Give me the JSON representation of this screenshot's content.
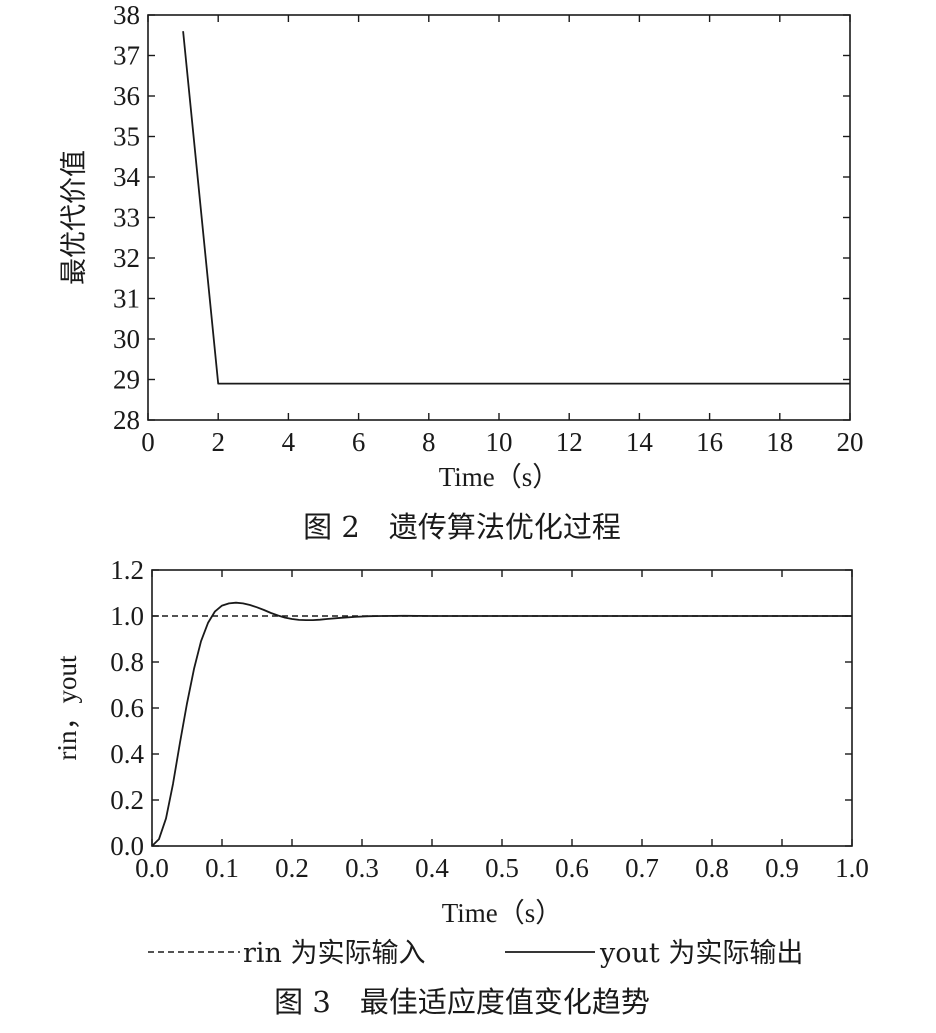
{
  "chart_data": [
    {
      "type": "line",
      "caption": "图 2　遗传算法优化过程",
      "xlabel": "Time（s）",
      "ylabel": "最优代价值",
      "xlim": [
        0,
        20
      ],
      "ylim": [
        28,
        38
      ],
      "xticks": [
        0,
        2,
        4,
        6,
        8,
        10,
        12,
        14,
        16,
        18,
        20
      ],
      "yticks": [
        28,
        29,
        30,
        31,
        32,
        33,
        34,
        35,
        36,
        37,
        38
      ],
      "series": [
        {
          "x": [
            1,
            2,
            20
          ],
          "y": [
            37.6,
            28.9,
            28.9
          ]
        }
      ]
    },
    {
      "type": "line",
      "caption": "图 3　最佳适应度值变化趋势",
      "xlabel": "Time（s）",
      "ylabel": "rin，yout",
      "xlim": [
        0.0,
        1.0
      ],
      "ylim": [
        0.0,
        1.2
      ],
      "xticks": [
        "0.0",
        "0.1",
        "0.2",
        "0.3",
        "0.4",
        "0.5",
        "0.6",
        "0.7",
        "0.8",
        "0.9",
        "1.0"
      ],
      "yticks": [
        "0.0",
        "0.2",
        "0.4",
        "0.6",
        "0.8",
        "1.0",
        "1.2"
      ],
      "series": [
        {
          "name": "rin 为实际输入",
          "style": "dashed",
          "x": [
            0.0,
            1.0
          ],
          "y": [
            1.0,
            1.0
          ]
        },
        {
          "name": "yout 为实际输出",
          "style": "solid",
          "x": [
            0.0,
            0.01,
            0.02,
            0.03,
            0.04,
            0.05,
            0.06,
            0.07,
            0.08,
            0.09,
            0.1,
            0.11,
            0.12,
            0.13,
            0.14,
            0.15,
            0.16,
            0.17,
            0.18,
            0.19,
            0.2,
            0.21,
            0.22,
            0.23,
            0.24,
            0.25,
            0.27,
            0.29,
            0.31,
            0.33,
            0.36,
            0.4,
            0.45,
            0.5,
            0.6,
            0.7,
            0.8,
            0.9,
            1.0
          ],
          "y": [
            0.0,
            0.03,
            0.12,
            0.27,
            0.45,
            0.62,
            0.77,
            0.89,
            0.97,
            1.02,
            1.045,
            1.055,
            1.058,
            1.055,
            1.048,
            1.038,
            1.026,
            1.013,
            1.002,
            0.993,
            0.987,
            0.983,
            0.982,
            0.982,
            0.984,
            0.987,
            0.992,
            0.996,
            0.999,
            1.0,
            1.001,
            1.0,
            1.0,
            1.0,
            1.0,
            1.0,
            1.0,
            1.0,
            1.0
          ]
        }
      ]
    }
  ]
}
